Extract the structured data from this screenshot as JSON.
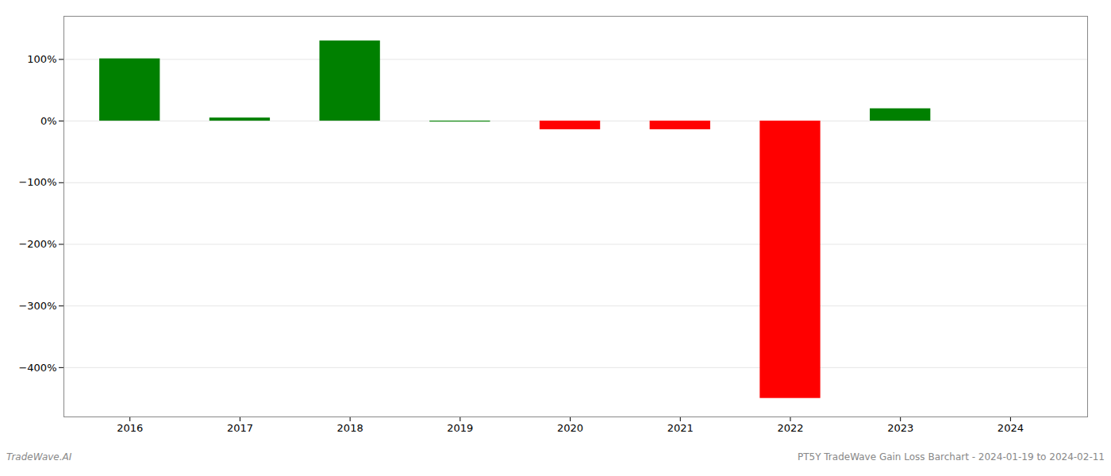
{
  "chart_data": {
    "type": "bar",
    "x": [
      2016,
      2017,
      2018,
      2019,
      2020,
      2021,
      2022,
      2023,
      2024
    ],
    "values": [
      101,
      5,
      130,
      -1.5,
      -14,
      -14,
      -450,
      20,
      null
    ],
    "colors": [
      "#008000",
      "#008000",
      "#008000",
      "#008000",
      "#ff0000",
      "#ff0000",
      "#ff0000",
      "#008000",
      null
    ],
    "xlim": [
      2015.4,
      2024.7
    ],
    "xticks": [
      2016,
      2017,
      2018,
      2019,
      2020,
      2021,
      2022,
      2023,
      2024
    ],
    "ylim": [
      -480,
      170
    ],
    "yticks": [
      {
        "value": 100,
        "label": "100%"
      },
      {
        "value": 0,
        "label": "0%"
      },
      {
        "value": -100,
        "label": "−100%"
      },
      {
        "value": -200,
        "label": "−200%"
      },
      {
        "value": -300,
        "label": "−300%"
      },
      {
        "value": -400,
        "label": "−400%"
      }
    ],
    "grid": true,
    "annotations": [
      "TradeWave.AI",
      "PT5Y TradeWave Gain Loss Barchart - 2024-01-19 to 2024-02-11"
    ]
  }
}
